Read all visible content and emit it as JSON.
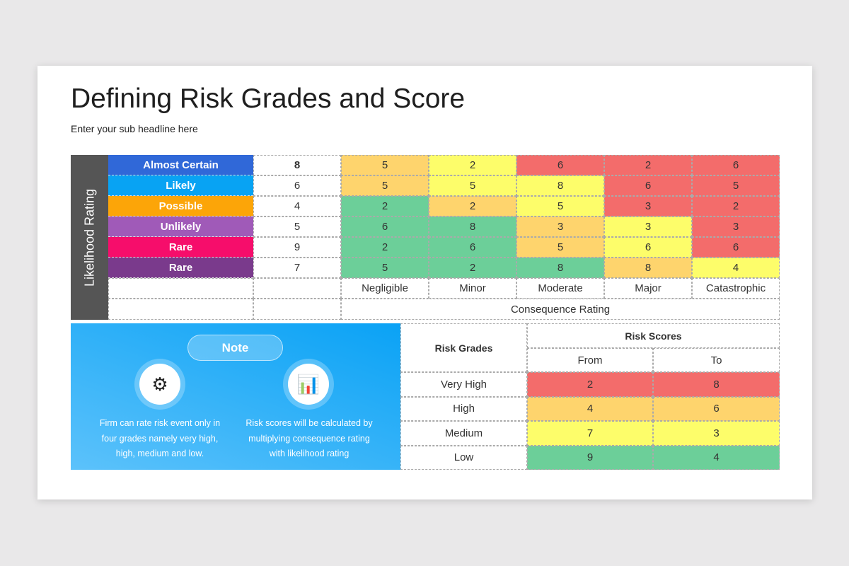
{
  "title": "Defining Risk Grades and Score",
  "subtitle": "Enter your sub headline here",
  "matrix": {
    "axis_likelihood": "Likelihood Rating",
    "axis_consequence": "Consequence Rating",
    "rows": [
      {
        "label": "Almost Certain",
        "color": "#3068d8",
        "value": "8",
        "cells": [
          "5",
          "2",
          "6",
          "2",
          "6"
        ],
        "levels": [
          "o",
          "y",
          "r",
          "r",
          "r"
        ]
      },
      {
        "label": "Likely",
        "color": "#08a3f3",
        "value": "6",
        "cells": [
          "5",
          "5",
          "8",
          "6",
          "5"
        ],
        "levels": [
          "o",
          "y",
          "y",
          "r",
          "r"
        ]
      },
      {
        "label": "Possible",
        "color": "#fca508",
        "value": "4",
        "cells": [
          "2",
          "2",
          "5",
          "3",
          "2"
        ],
        "levels": [
          "g",
          "o",
          "y",
          "r",
          "r"
        ]
      },
      {
        "label": "Unlikely",
        "color": "#a05ab8",
        "value": "5",
        "cells": [
          "6",
          "8",
          "3",
          "3",
          "3"
        ],
        "levels": [
          "g",
          "g",
          "o",
          "y",
          "r"
        ]
      },
      {
        "label": "Rare",
        "color": "#f60d6b",
        "value": "9",
        "cells": [
          "2",
          "6",
          "5",
          "6",
          "6"
        ],
        "levels": [
          "g",
          "g",
          "o",
          "y",
          "r"
        ]
      },
      {
        "label": "Rare",
        "color": "#7a3a8c",
        "value": "7",
        "cells": [
          "5",
          "2",
          "8",
          "8",
          "4"
        ],
        "levels": [
          "g",
          "g",
          "g",
          "o",
          "y"
        ]
      }
    ],
    "columns": [
      "Negligible",
      "Minor",
      "Moderate",
      "Major",
      "Catastrophic"
    ]
  },
  "colors": {
    "r": "#f36c6b",
    "o": "#fed46d",
    "y": "#fdfd6a",
    "g": "#6ccf99"
  },
  "note": {
    "label": "Note",
    "items": [
      {
        "icon": "risk-management-icon",
        "text": "Firm can rate risk event only in four grades namely very high, high, medium and low."
      },
      {
        "icon": "risk-chart-warning-icon",
        "text": "Risk scores will be calculated by multiplying consequence rating with likelihood rating"
      }
    ]
  },
  "scores": {
    "grades_header": "Risk Grades",
    "scores_header": "Risk Scores",
    "from": "From",
    "to": "To",
    "rows": [
      {
        "grade": "Very High",
        "from": "2",
        "to": "8",
        "level": "r"
      },
      {
        "grade": "High",
        "from": "4",
        "to": "6",
        "level": "o"
      },
      {
        "grade": "Medium",
        "from": "7",
        "to": "3",
        "level": "y"
      },
      {
        "grade": "Low",
        "from": "9",
        "to": "4",
        "level": "g"
      }
    ]
  }
}
